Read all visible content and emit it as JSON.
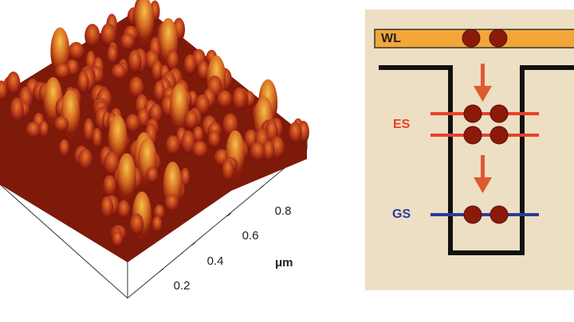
{
  "afm": {
    "axis_ticks": [
      "0.2",
      "0.4",
      "0.6",
      "0.8"
    ],
    "axis_unit": "μm"
  },
  "energy_diagram": {
    "levels": [
      "WL",
      "ES",
      "GS"
    ]
  }
}
